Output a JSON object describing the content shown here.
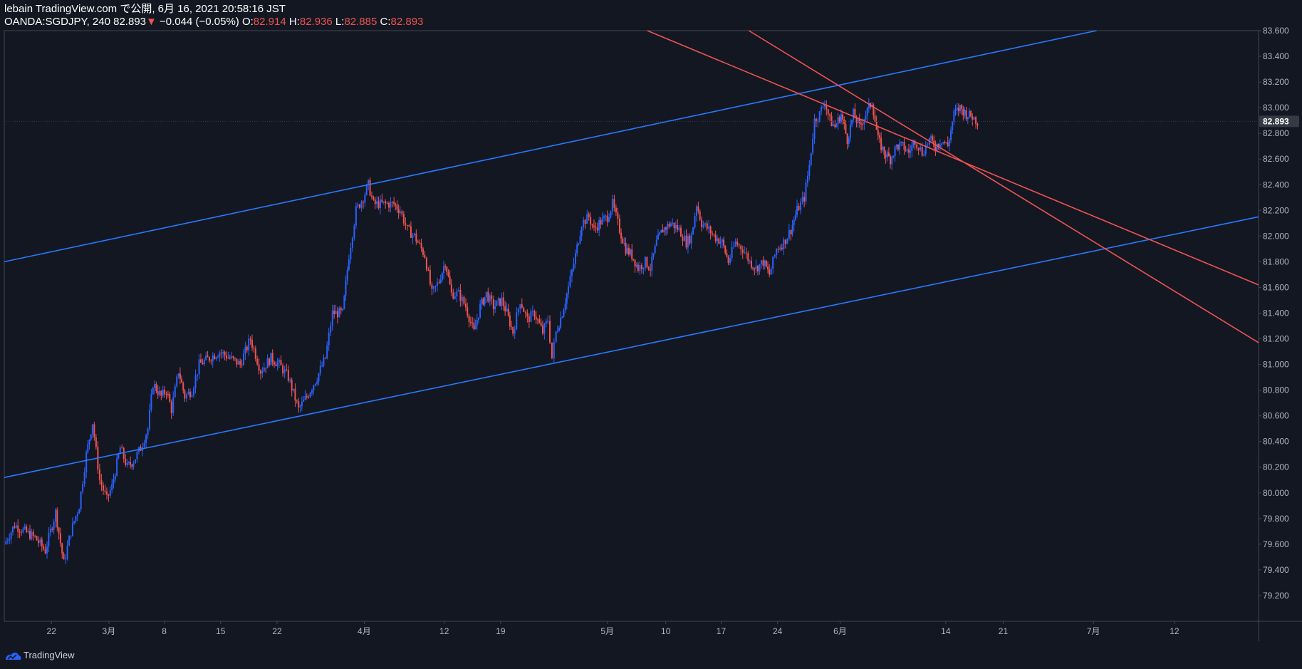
{
  "header": {
    "line1": "lebain TradingView.com で公開, 6月 16, 2021 20:58:16 JST",
    "symbol": "OANDA:SGDJPY, 240 82.893",
    "change": "−0.044 (−0.05%)",
    "o_label": "O:",
    "o_value": "82.914",
    "h_label": "H:",
    "h_value": "82.936",
    "l_label": "L:",
    "l_value": "82.885",
    "c_label": "C:",
    "c_value": "82.893"
  },
  "footer": {
    "brand": "TradingView"
  },
  "colors": {
    "background": "#131722",
    "up": "#2962ff",
    "down": "#ef5350",
    "channel_up": "#2979ff",
    "channel_down": "#ef5350",
    "axis": "#b2b5be"
  },
  "chart_data": {
    "type": "candlestick",
    "symbol": "OANDA:SGDJPY",
    "interval": "240",
    "last_price": "82.893",
    "ylim": [
      79.0,
      83.6
    ],
    "xlim": [
      0,
      122.3
    ],
    "y_ticks": [
      "79.200",
      "79.400",
      "79.600",
      "79.800",
      "80.000",
      "80.200",
      "80.400",
      "80.600",
      "80.800",
      "81.000",
      "81.200",
      "81.400",
      "81.600",
      "81.800",
      "82.000",
      "82.200",
      "82.400",
      "82.600",
      "82.800",
      "83.000",
      "83.200",
      "83.400",
      "83.600"
    ],
    "x_ticks": [
      {
        "label": "22",
        "day": 4.6
      },
      {
        "label": "3月",
        "day": 10.2
      },
      {
        "label": "8",
        "day": 15.6
      },
      {
        "label": "15",
        "day": 21.1
      },
      {
        "label": "22",
        "day": 26.6
      },
      {
        "label": "4月",
        "day": 35.1
      },
      {
        "label": "12",
        "day": 42.9
      },
      {
        "label": "19",
        "day": 48.4
      },
      {
        "label": "5月",
        "day": 58.8
      },
      {
        "label": "10",
        "day": 64.5
      },
      {
        "label": "17",
        "day": 69.9
      },
      {
        "label": "24",
        "day": 75.4
      },
      {
        "label": "6月",
        "day": 81.5
      },
      {
        "label": "14",
        "day": 91.8
      },
      {
        "label": "21",
        "day": 97.4
      },
      {
        "label": "7月",
        "day": 106.2
      },
      {
        "label": "12",
        "day": 114.1
      }
    ],
    "x_tick_units": "days since 2021-02-17",
    "close_path": [
      [
        0,
        79.6
      ],
      [
        1,
        79.75
      ],
      [
        2,
        79.7
      ],
      [
        3,
        79.65
      ],
      [
        4,
        79.55
      ],
      [
        5,
        79.85
      ],
      [
        5.8,
        79.45
      ],
      [
        6.5,
        79.7
      ],
      [
        7.3,
        79.9
      ],
      [
        8,
        80.3
      ],
      [
        8.6,
        80.55
      ],
      [
        9.3,
        80.1
      ],
      [
        10,
        79.95
      ],
      [
        10.5,
        80.05
      ],
      [
        11.3,
        80.35
      ],
      [
        12,
        80.2
      ],
      [
        12.6,
        80.25
      ],
      [
        13.3,
        80.35
      ],
      [
        14,
        80.5
      ],
      [
        14.5,
        80.85
      ],
      [
        15.3,
        80.75
      ],
      [
        15.8,
        80.8
      ],
      [
        16.3,
        80.65
      ],
      [
        17,
        80.95
      ],
      [
        17.6,
        80.75
      ],
      [
        18.3,
        80.8
      ],
      [
        19,
        81.0
      ],
      [
        20,
        81.05
      ],
      [
        21,
        81.1
      ],
      [
        22,
        81.05
      ],
      [
        23,
        81.0
      ],
      [
        24,
        81.2
      ],
      [
        25,
        80.95
      ],
      [
        26,
        81.05
      ],
      [
        26.8,
        81.0
      ],
      [
        27.7,
        80.9
      ],
      [
        28.7,
        80.65
      ],
      [
        29.5,
        80.75
      ],
      [
        30.5,
        80.9
      ],
      [
        31.3,
        81.05
      ],
      [
        32,
        81.4
      ],
      [
        33,
        81.4
      ],
      [
        33.6,
        81.85
      ],
      [
        34.3,
        82.2
      ],
      [
        35,
        82.3
      ],
      [
        35.5,
        82.4
      ],
      [
        36,
        82.25
      ],
      [
        37,
        82.25
      ],
      [
        38,
        82.25
      ],
      [
        38.6,
        82.2
      ],
      [
        39.3,
        82.05
      ],
      [
        40,
        82.0
      ],
      [
        41,
        81.85
      ],
      [
        41.7,
        81.55
      ],
      [
        42.4,
        81.65
      ],
      [
        43,
        81.8
      ],
      [
        43.6,
        81.55
      ],
      [
        44.3,
        81.55
      ],
      [
        45,
        81.45
      ],
      [
        45.8,
        81.25
      ],
      [
        46.4,
        81.45
      ],
      [
        47,
        81.55
      ],
      [
        47.7,
        81.45
      ],
      [
        48.5,
        81.5
      ],
      [
        49,
        81.4
      ],
      [
        49.6,
        81.25
      ],
      [
        50.3,
        81.5
      ],
      [
        51,
        81.35
      ],
      [
        51.7,
        81.4
      ],
      [
        52.5,
        81.25
      ],
      [
        53,
        81.35
      ],
      [
        53.4,
        81.05
      ],
      [
        53.8,
        81.25
      ],
      [
        54.4,
        81.4
      ],
      [
        55,
        81.6
      ],
      [
        55.7,
        81.85
      ],
      [
        56.3,
        82.1
      ],
      [
        57,
        82.15
      ],
      [
        57.5,
        82.05
      ],
      [
        58,
        82.1
      ],
      [
        58.8,
        82.15
      ],
      [
        59.3,
        82.25
      ],
      [
        60,
        82.05
      ],
      [
        60.6,
        81.9
      ],
      [
        61.2,
        81.85
      ],
      [
        61.8,
        81.75
      ],
      [
        62.5,
        81.8
      ],
      [
        63,
        81.75
      ],
      [
        63.6,
        81.95
      ],
      [
        64.2,
        82.05
      ],
      [
        65,
        82.1
      ],
      [
        65.8,
        82.05
      ],
      [
        66.5,
        81.95
      ],
      [
        67,
        82.0
      ],
      [
        67.5,
        82.25
      ],
      [
        68,
        82.1
      ],
      [
        68.7,
        82.05
      ],
      [
        69.2,
        82.0
      ],
      [
        70,
        81.95
      ],
      [
        70.6,
        81.8
      ],
      [
        71.3,
        81.95
      ],
      [
        72,
        81.9
      ],
      [
        72.7,
        81.8
      ],
      [
        73.3,
        81.75
      ],
      [
        74,
        81.8
      ],
      [
        74.6,
        81.7
      ],
      [
        75.3,
        81.9
      ],
      [
        76,
        81.95
      ],
      [
        76.7,
        82.05
      ],
      [
        77.3,
        82.2
      ],
      [
        78,
        82.3
      ],
      [
        78.5,
        82.55
      ],
      [
        79,
        82.9
      ],
      [
        79.5,
        82.95
      ],
      [
        80,
        83.05
      ],
      [
        80.5,
        82.9
      ],
      [
        81,
        82.85
      ],
      [
        81.6,
        82.95
      ],
      [
        82.2,
        82.75
      ],
      [
        82.8,
        82.95
      ],
      [
        83.4,
        82.85
      ],
      [
        84,
        82.95
      ],
      [
        84.6,
        83.05
      ],
      [
        85.2,
        82.75
      ],
      [
        85.8,
        82.65
      ],
      [
        86.4,
        82.6
      ],
      [
        87,
        82.7
      ],
      [
        87.6,
        82.7
      ],
      [
        88.2,
        82.65
      ],
      [
        88.8,
        82.75
      ],
      [
        89.5,
        82.65
      ],
      [
        90.2,
        82.75
      ],
      [
        90.8,
        82.7
      ],
      [
        91.4,
        82.75
      ],
      [
        92,
        82.7
      ],
      [
        92.6,
        82.95
      ],
      [
        93.2,
        83.0
      ],
      [
        93.8,
        82.95
      ],
      [
        94.4,
        82.93
      ],
      [
        94.9,
        82.89
      ]
    ],
    "channels": [
      {
        "name": "",
        "color": "#2979ff",
        "points": [
          [
            0,
            81.8
          ],
          [
            106.5,
            83.6
          ]
        ]
      },
      {
        "name": "",
        "color": "#2979ff",
        "points": [
          [
            0,
            80.12
          ],
          [
            122.3,
            82.15
          ]
        ]
      },
      {
        "name": "",
        "color": "#ef5350",
        "points": [
          [
            62.7,
            83.6
          ],
          [
            122.3,
            81.62
          ]
        ]
      },
      {
        "name": "",
        "color": "#ef5350",
        "points": [
          [
            72.6,
            83.6
          ],
          [
            122.3,
            81.17
          ]
        ]
      }
    ]
  }
}
